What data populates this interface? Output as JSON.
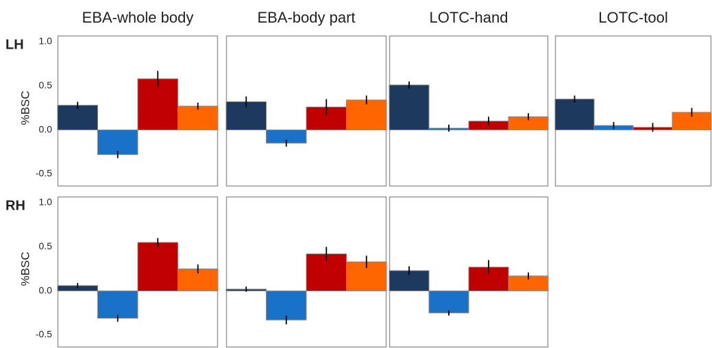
{
  "chart_data": {
    "type": "bar",
    "column_titles": [
      "EBA-whole body",
      "EBA-body part",
      "LOTC-hand",
      "LOTC-tool"
    ],
    "colors": [
      "#1d3a5e",
      "#1a72c8",
      "#c00000",
      "#ff6600"
    ],
    "ylim": [
      -0.64,
      1.07
    ],
    "yticks": [
      {
        "value": -0.5,
        "label": "-0.5"
      },
      {
        "value": 0,
        "label": "0.0"
      },
      0.5,
      {
        "value": 1,
        "label": "1.0"
      }
    ],
    "rows": [
      {
        "label": "LH",
        "y_label": "%BSC",
        "panels": [
          {
            "values": [
              0.28,
              -0.28,
              0.58,
              0.27
            ],
            "errors": [
              0.04,
              0.04,
              0.09,
              0.04
            ]
          },
          {
            "values": [
              0.32,
              -0.15,
              0.26,
              0.34
            ],
            "errors": [
              0.06,
              0.04,
              0.09,
              0.05
            ]
          },
          {
            "values": [
              0.51,
              0.02,
              0.1,
              0.15
            ],
            "errors": [
              0.04,
              0.04,
              0.05,
              0.04
            ]
          },
          {
            "values": [
              0.35,
              0.05,
              0.03,
              0.2
            ],
            "errors": [
              0.04,
              0.04,
              0.05,
              0.05
            ]
          }
        ]
      },
      {
        "label": "RH",
        "y_label": "%BSC",
        "panels": [
          {
            "values": [
              0.06,
              -0.31,
              0.55,
              0.25
            ],
            "errors": [
              0.03,
              0.04,
              0.05,
              0.05
            ]
          },
          {
            "values": [
              0.02,
              -0.33,
              0.42,
              0.33
            ],
            "errors": [
              0.03,
              0.05,
              0.08,
              0.07
            ]
          },
          {
            "values": [
              0.23,
              -0.25,
              0.27,
              0.17
            ],
            "errors": [
              0.05,
              0.03,
              0.08,
              0.04
            ]
          }
        ]
      }
    ]
  }
}
